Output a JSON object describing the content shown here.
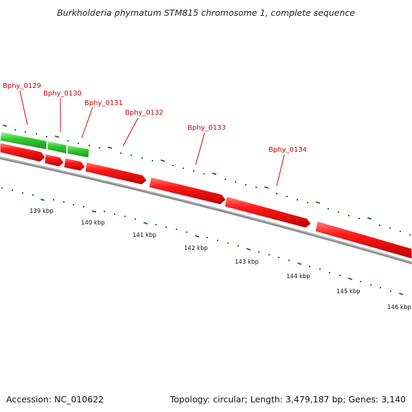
{
  "title": "Burkholderia phymatum STM815 chromosome 1, complete sequence",
  "footer": {
    "accession": "Accession: NC_010622",
    "summary": "Topology: circular; Length: 3,479,187 bp; Genes: 3,140"
  },
  "colors": {
    "forward_gene": "#2ecc2e",
    "reverse_gene": "#ff1a1a",
    "label": "#cc0000",
    "backbone": "#8a8a8a",
    "tick": "#1a7a1a"
  },
  "genes": [
    {
      "label": "Bphy_0129",
      "strand": "reverse"
    },
    {
      "label": "Bphy_0130",
      "strand": "reverse"
    },
    {
      "label": "Bphy_0131",
      "strand": "reverse"
    },
    {
      "label": "Bphy_0132",
      "strand": "reverse"
    },
    {
      "label": "Bphy_0133",
      "strand": "reverse"
    },
    {
      "label": "Bphy_0134",
      "strand": "reverse"
    }
  ],
  "ruler": [
    {
      "label": "139 kbp"
    },
    {
      "label": "140 kbp"
    },
    {
      "label": "141 kbp"
    },
    {
      "label": "142 kbp"
    },
    {
      "label": "143 kbp"
    },
    {
      "label": "144 kbp"
    },
    {
      "label": "145 kbp"
    },
    {
      "label": "146 kbp"
    }
  ]
}
